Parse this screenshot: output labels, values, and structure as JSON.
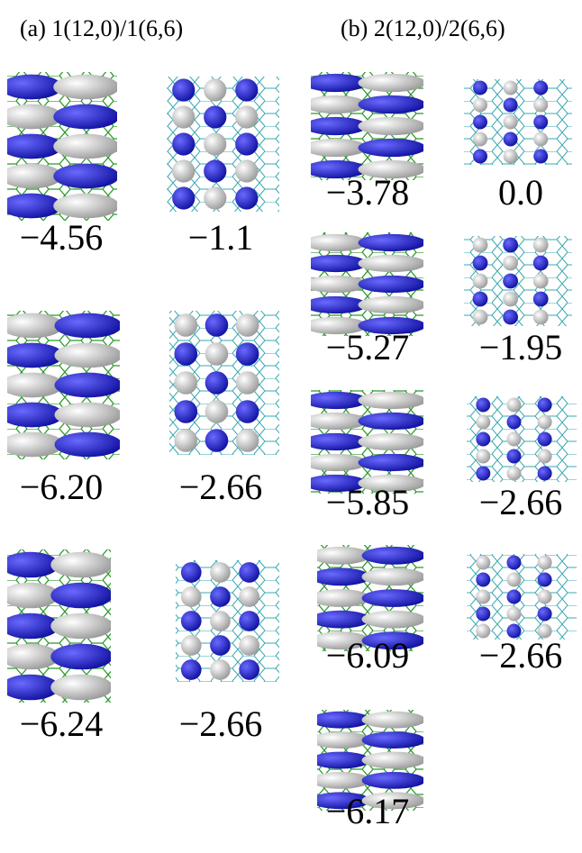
{
  "panel_a": {
    "title": "(a) 1(12,0)/1(6,6)",
    "columns": [
      {
        "energies": [
          "−4.56",
          "−6.20",
          "−6.24"
        ]
      },
      {
        "energies": [
          "−1.1",
          "−2.66",
          "−2.66"
        ]
      }
    ]
  },
  "panel_b": {
    "title": "(b) 2(12,0)/2(6,6)",
    "columns": [
      {
        "energies": [
          "−3.78",
          "−5.27",
          "−5.85",
          "−6.09",
          "−6.17"
        ]
      },
      {
        "energies": [
          "0.0",
          "−1.95",
          "−2.66",
          "−2.66"
        ]
      }
    ]
  }
}
